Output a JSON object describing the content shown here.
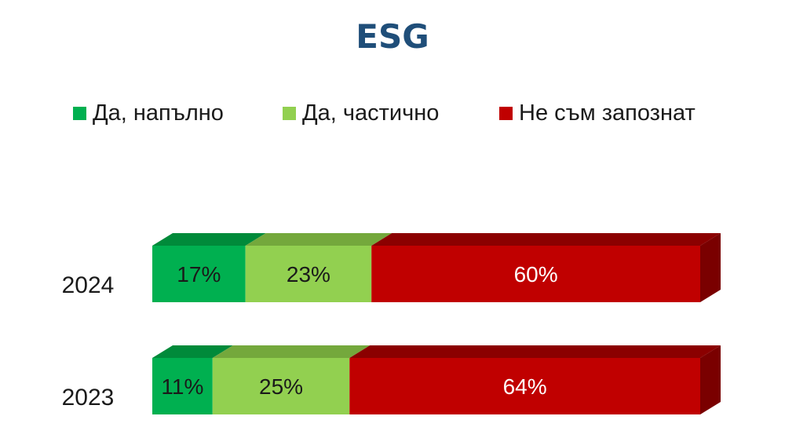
{
  "chart_data": {
    "type": "bar",
    "orientation": "horizontal",
    "stacked": true,
    "percent": true,
    "style_3d": true,
    "title": "ESG",
    "legend_position": "top",
    "categories": [
      "2024",
      "2023"
    ],
    "series": [
      {
        "name": "Да, напълно",
        "values": [
          17,
          11
        ],
        "labels": [
          "17%",
          "11%"
        ],
        "color": "#00b050",
        "top_color": "#008a3a",
        "side_color": "#007a33",
        "label_color": "#1a1a1a"
      },
      {
        "name": "Да, частично",
        "values": [
          23,
          25
        ],
        "labels": [
          "23%",
          "25%"
        ],
        "color": "#92d050",
        "top_color": "#74a83c",
        "side_color": "#6a9b36",
        "label_color": "#1a1a1a"
      },
      {
        "name": "Не съм запознат",
        "values": [
          60,
          64
        ],
        "labels": [
          "60%",
          "64%"
        ],
        "color": "#c00000",
        "top_color": "#8b0000",
        "side_color": "#7a0000",
        "label_color": "#ffffff"
      }
    ]
  },
  "colors": {
    "title": "#1f4e79",
    "text": "#1a1a1a"
  }
}
